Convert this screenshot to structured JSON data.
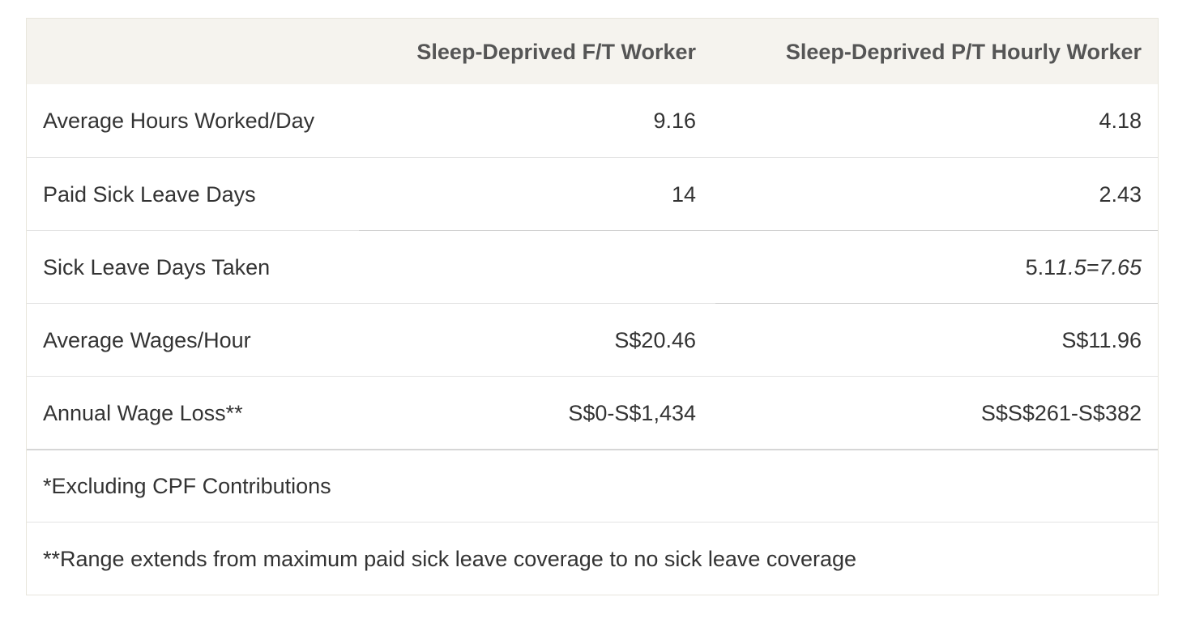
{
  "table": {
    "headers": {
      "col0": "",
      "col1": "Sleep-Deprived F/T Worker",
      "col2": "Sleep-Deprived P/T Hourly Worker"
    },
    "rows": [
      {
        "label": "Average Hours Worked/Day",
        "col1": "9.16",
        "col2": "4.18"
      },
      {
        "label": "Paid Sick Leave Days",
        "col1": "14",
        "col2": "2.43"
      },
      {
        "label": "Sick Leave Days Taken",
        "col1": "",
        "col2_plain": "5.1",
        "col2_italic": "1.5=7.65"
      },
      {
        "label": "Average Wages/Hour",
        "col1": "S$20.46",
        "col2": "S$11.96"
      },
      {
        "label": "Annual Wage Loss**",
        "col1": "S$0-S$1,434",
        "col2": "S$S$261-S$382"
      }
    ],
    "notes": [
      "*Excluding CPF Contributions",
      "**Range extends from maximum paid sick leave coverage to no sick leave coverage"
    ]
  }
}
